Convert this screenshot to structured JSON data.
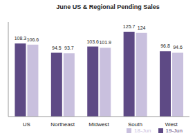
{
  "chart_data": {
    "type": "bar",
    "title": "June US & Regional Pending Sales",
    "categories": [
      "US",
      "Northeast",
      "Midwest",
      "South",
      "West"
    ],
    "series": [
      {
        "name": "19-Jun",
        "color": "#5e4a85",
        "values": [
          108.3,
          94.5,
          103.6,
          125.7,
          96.8
        ]
      },
      {
        "name": "18-Jun",
        "color": "#c9c0de",
        "values": [
          106.6,
          93.7,
          101.9,
          124,
          94.6
        ]
      }
    ],
    "ylim": [
      0,
      140
    ],
    "yticks": [
      0,
      20,
      40,
      60,
      80,
      100,
      120,
      140
    ],
    "grid": false,
    "legend": "bottom",
    "data_labels": true,
    "tick_labels": "x"
  }
}
